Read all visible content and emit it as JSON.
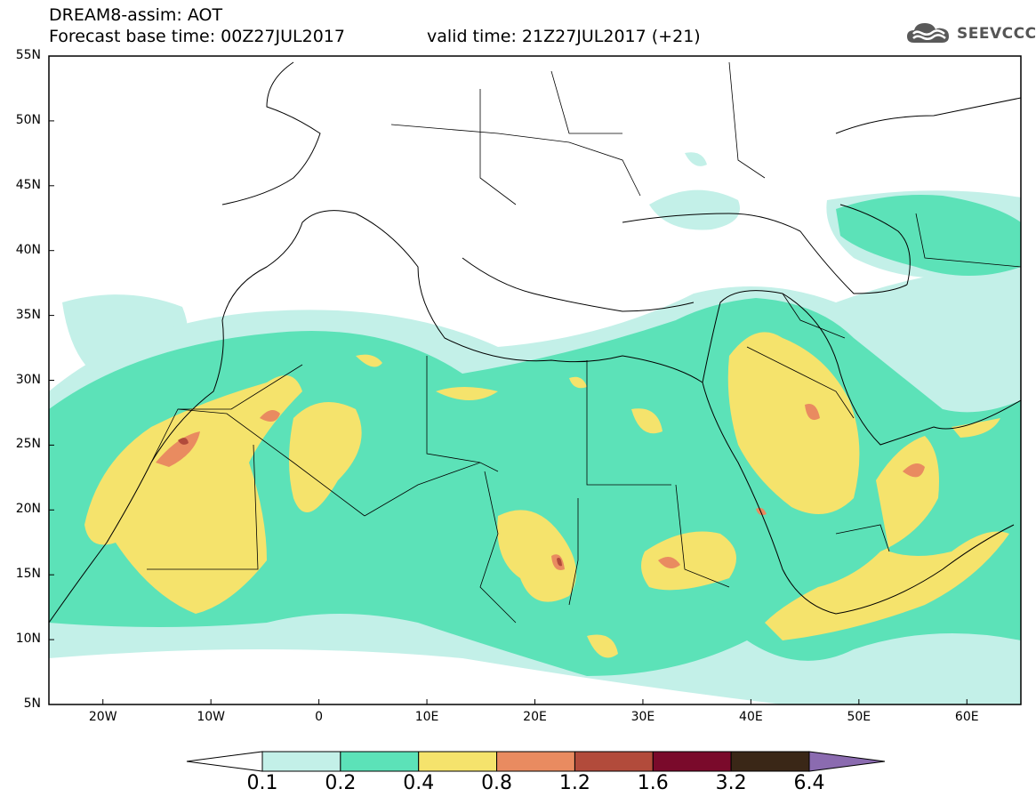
{
  "header": {
    "title_line1": "DREAM8-assim: AOT",
    "title_line2": "Forecast base time: 00Z27JUL2017",
    "valid_time": "valid time: 21Z27JUL2017 (+21)",
    "logo_text": "SEEVCCC",
    "logo_icon": "cloud-icon"
  },
  "map": {
    "region": "North Africa, Middle East and Europe",
    "lon_range": [
      -25,
      65
    ],
    "lat_range": [
      5,
      55
    ],
    "lat_ticks": [
      "55N",
      "50N",
      "45N",
      "40N",
      "35N",
      "30N",
      "25N",
      "20N",
      "15N",
      "10N",
      "5N"
    ],
    "lon_ticks": [
      "20W",
      "10W",
      "0",
      "10E",
      "20E",
      "30E",
      "40E",
      "50E",
      "60E"
    ]
  },
  "colorbar": {
    "labels": [
      "0.1",
      "0.2",
      "0.4",
      "0.8",
      "1.2",
      "1.6",
      "3.2",
      "6.4"
    ],
    "colors": [
      "#ffffff",
      "#c3f0e8",
      "#5ce2b8",
      "#f5e36c",
      "#e98b60",
      "#b24b3b",
      "#7a0a2b",
      "#3a2717",
      "#8b6bb0"
    ]
  }
}
